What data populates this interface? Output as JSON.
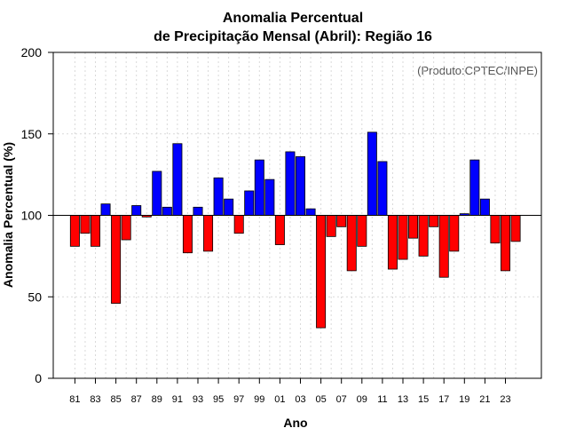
{
  "chart_data": {
    "type": "bar",
    "title": "Anomalia Percentual",
    "subtitle": "de Precipitação Mensal (Abril): Região 16",
    "xlabel": "Ano",
    "ylabel": "Anomalia Percentual (%)",
    "credit": "(Produto:CPTEC/INPE)",
    "ylim": [
      0,
      200
    ],
    "yticks": [
      "0",
      "50",
      "100",
      "150",
      "200"
    ],
    "baseline": 100,
    "grid": true,
    "categories": [
      "81",
      "82",
      "83",
      "84",
      "85",
      "86",
      "87",
      "88",
      "89",
      "90",
      "91",
      "92",
      "93",
      "94",
      "95",
      "96",
      "97",
      "98",
      "99",
      "00",
      "01",
      "02",
      "03",
      "04",
      "05",
      "06",
      "07",
      "08",
      "09",
      "10",
      "11",
      "12",
      "13",
      "14",
      "15",
      "16",
      "17",
      "18",
      "19",
      "20",
      "21",
      "22",
      "23",
      "24"
    ],
    "xtick_labels": [
      "81",
      "83",
      "85",
      "87",
      "89",
      "91",
      "93",
      "95",
      "97",
      "99",
      "01",
      "03",
      "05",
      "07",
      "09",
      "11",
      "13",
      "15",
      "17",
      "19",
      "21",
      "23"
    ],
    "values": [
      81,
      89,
      81,
      107,
      46,
      85,
      106,
      99,
      127,
      105,
      144,
      77,
      105,
      78,
      123,
      110,
      89,
      115,
      134,
      122,
      82,
      139,
      136,
      104,
      31,
      87,
      93,
      66,
      81,
      151,
      133,
      67,
      73,
      86,
      75,
      93,
      62,
      78,
      101,
      134,
      110,
      83,
      66,
      84
    ],
    "colors": {
      "above": "#0000ff",
      "below": "#ff0000"
    }
  }
}
